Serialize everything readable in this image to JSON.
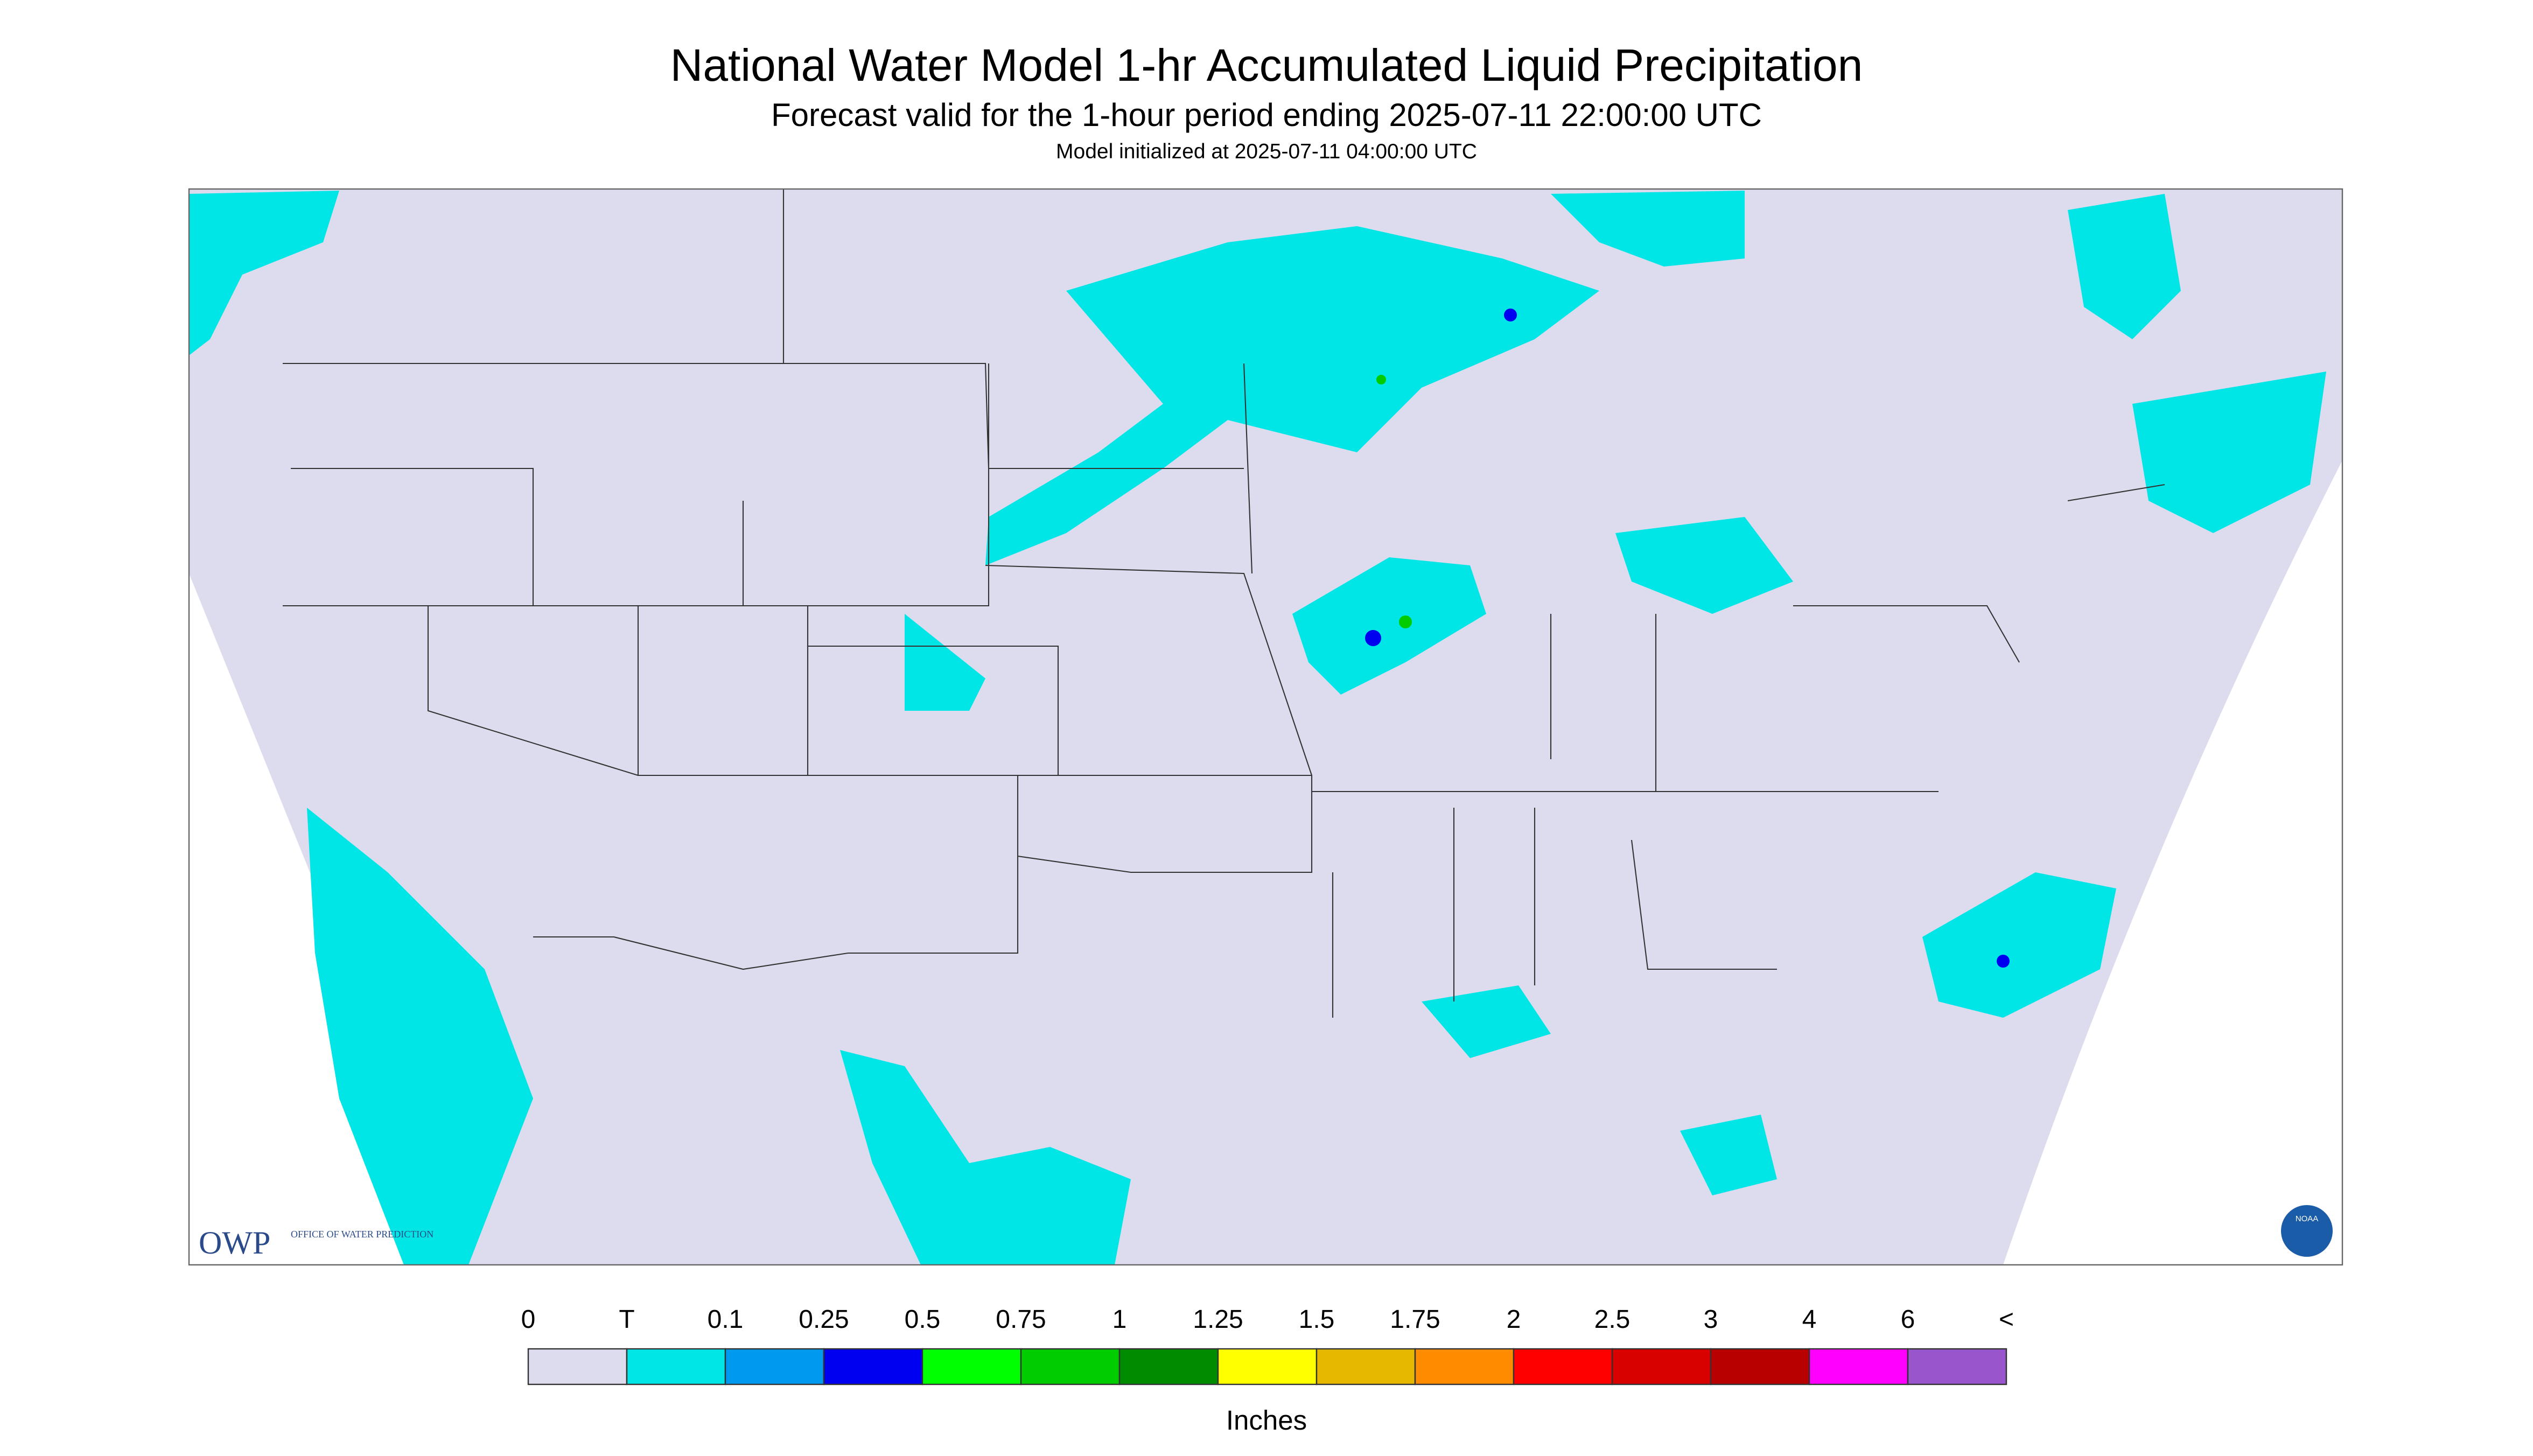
{
  "header": {
    "title": "National Water Model 1-hr Accumulated Liquid Precipitation",
    "subtitle": "Forecast valid for the 1-hour period ending 2025-07-11 22:00:00 UTC",
    "init": "Model initialized at 2025-07-11 04:00:00 UTC"
  },
  "legend": {
    "labels": [
      "0",
      "T",
      "0.1",
      "0.25",
      "0.5",
      "0.75",
      "1",
      "1.25",
      "1.5",
      "1.75",
      "2",
      "2.5",
      "3",
      "4",
      "6",
      "<"
    ],
    "colors": [
      "#dcdcee",
      "#00e5e5",
      "#0099f0",
      "#0000f0",
      "#00ff00",
      "#00cc00",
      "#008c00",
      "#ffff00",
      "#e6b800",
      "#ff8c00",
      "#ff0000",
      "#d90000",
      "#b80000",
      "#ff00ff",
      "#9955cc"
    ],
    "unit": "Inches"
  },
  "logos": {
    "owp": "OWP",
    "owp_name": "OFFICE OF WATER PREDICTION",
    "noaa": "NOAA"
  }
}
